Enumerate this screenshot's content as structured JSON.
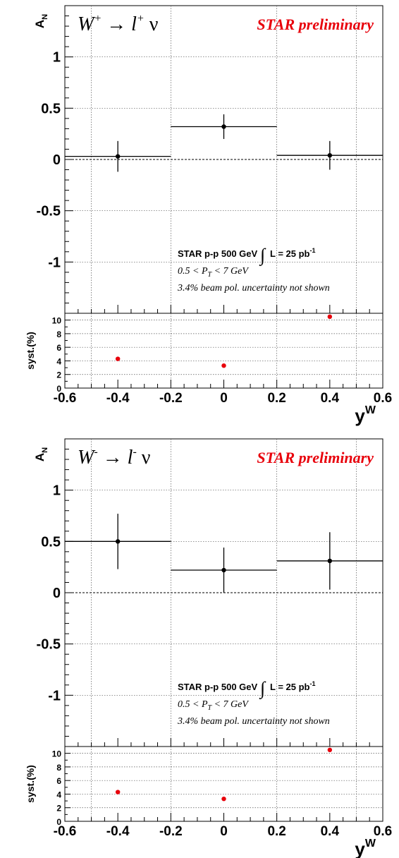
{
  "chart_data": [
    {
      "type": "scatter",
      "title_main": "W",
      "title_sup": "+",
      "title_arrow": " → ",
      "title_lepton": "l",
      "title_lepton_sup": "+",
      "title_nu": " ν",
      "preliminary": "STAR preliminary",
      "ylabel_main": "A",
      "ylabel_sub": "N",
      "xlabel_main": "y",
      "xlabel_sup": "W",
      "xlim": [
        -0.6,
        0.6
      ],
      "ylim": [
        -1.5,
        1.5
      ],
      "x_ticks": [
        "-0.6",
        "-0.4",
        "-0.2",
        "0",
        "0.2",
        "0.4",
        "0.6"
      ],
      "y_ticks": [
        "1",
        "0.5",
        "0",
        "-0.5",
        "-1"
      ],
      "grid": true,
      "annotation": {
        "line1": "STAR p-p 500 GeV",
        "lumi": "L = 25 pb",
        "lumi_sup": "-1",
        "pt_a": "0.5 < P",
        "pt_sub": "T",
        "pt_b": " < 7 GeV",
        "line3": "3.4% beam pol. uncertainty not shown"
      },
      "points": [
        {
          "x": -0.4,
          "xlow": -0.6,
          "xhigh": -0.2,
          "y": 0.03,
          "yerr": 0.15
        },
        {
          "x": 0.0,
          "xlow": -0.2,
          "xhigh": 0.2,
          "y": 0.32,
          "yerr": 0.12
        },
        {
          "x": 0.4,
          "xlow": 0.2,
          "xhigh": 0.6,
          "y": 0.04,
          "yerr": 0.14
        }
      ],
      "syst": {
        "ylabel": "syst.(%)",
        "ylim": [
          0,
          11
        ],
        "y_ticks": [
          "10",
          "8",
          "6",
          "4",
          "2",
          "0"
        ],
        "points": [
          {
            "x": -0.4,
            "y": 4.3
          },
          {
            "x": 0.0,
            "y": 3.3
          },
          {
            "x": 0.4,
            "y": 10.5
          }
        ],
        "color": "#e8000b"
      }
    },
    {
      "type": "scatter",
      "title_main": "W",
      "title_sup": "-",
      "title_arrow": " → ",
      "title_lepton": "l",
      "title_lepton_sup": "-",
      "title_nu": " ν",
      "preliminary": "STAR preliminary",
      "ylabel_main": "A",
      "ylabel_sub": "N",
      "xlabel_main": "y",
      "xlabel_sup": "W",
      "xlim": [
        -0.6,
        0.6
      ],
      "ylim": [
        -1.5,
        1.5
      ],
      "x_ticks": [
        "-0.6",
        "-0.4",
        "-0.2",
        "0",
        "0.2",
        "0.4",
        "0.6"
      ],
      "y_ticks": [
        "1",
        "0.5",
        "0",
        "-0.5",
        "-1"
      ],
      "grid": true,
      "annotation": {
        "line1": "STAR p-p 500 GeV",
        "lumi": "L = 25 pb",
        "lumi_sup": "-1",
        "pt_a": "0.5 < P",
        "pt_sub": "T",
        "pt_b": " < 7 GeV",
        "line3": "3.4% beam pol. uncertainty not shown"
      },
      "points": [
        {
          "x": -0.4,
          "xlow": -0.6,
          "xhigh": -0.2,
          "y": 0.5,
          "yerr": 0.27
        },
        {
          "x": 0.0,
          "xlow": -0.2,
          "xhigh": 0.2,
          "y": 0.22,
          "yerr": 0.22
        },
        {
          "x": 0.4,
          "xlow": 0.2,
          "xhigh": 0.6,
          "y": 0.31,
          "yerr": 0.28
        }
      ],
      "syst": {
        "ylabel": "syst.(%)",
        "ylim": [
          0,
          11
        ],
        "y_ticks": [
          "10",
          "8",
          "6",
          "4",
          "2",
          "0"
        ],
        "points": [
          {
            "x": -0.4,
            "y": 4.3
          },
          {
            "x": 0.0,
            "y": 3.3
          },
          {
            "x": 0.4,
            "y": 10.5
          }
        ],
        "color": "#e8000b"
      }
    }
  ]
}
